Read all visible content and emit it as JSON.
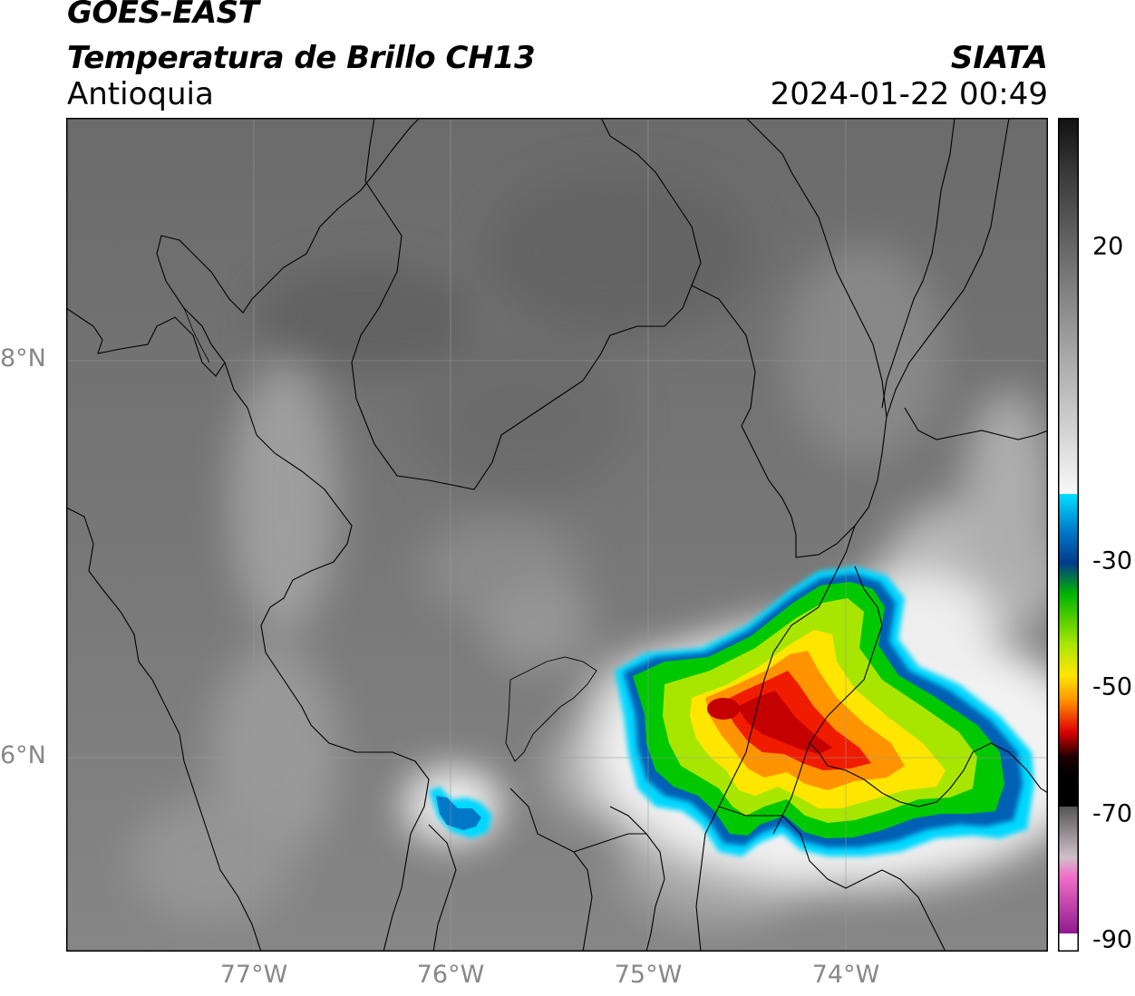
{
  "header": {
    "satellite": "GOES-EAST",
    "product": "Temperatura de Brillo CH13",
    "region": "Antioquia",
    "organization": "SIATA",
    "datetime": "2024-01-22 00:49"
  },
  "map": {
    "lat_labels": [
      "8°N",
      "6°N"
    ],
    "lon_labels": [
      "77°W",
      "76°W",
      "75°W",
      "74°W"
    ],
    "grid": true
  },
  "colorbar": {
    "ticks": [
      "20",
      "-30",
      "-50",
      "-70",
      "-90"
    ],
    "colors": {
      "gray_dark": "#1a1a1a",
      "gray_light": "#f2f2f2",
      "cyan": "#00d8ff",
      "blue": "#003c8c",
      "green": "#00c000",
      "yellow": "#ffe600",
      "orange": "#ff8c00",
      "red": "#e00000",
      "black": "#000000",
      "pink": "#e070c0",
      "purple": "#901a90"
    }
  }
}
